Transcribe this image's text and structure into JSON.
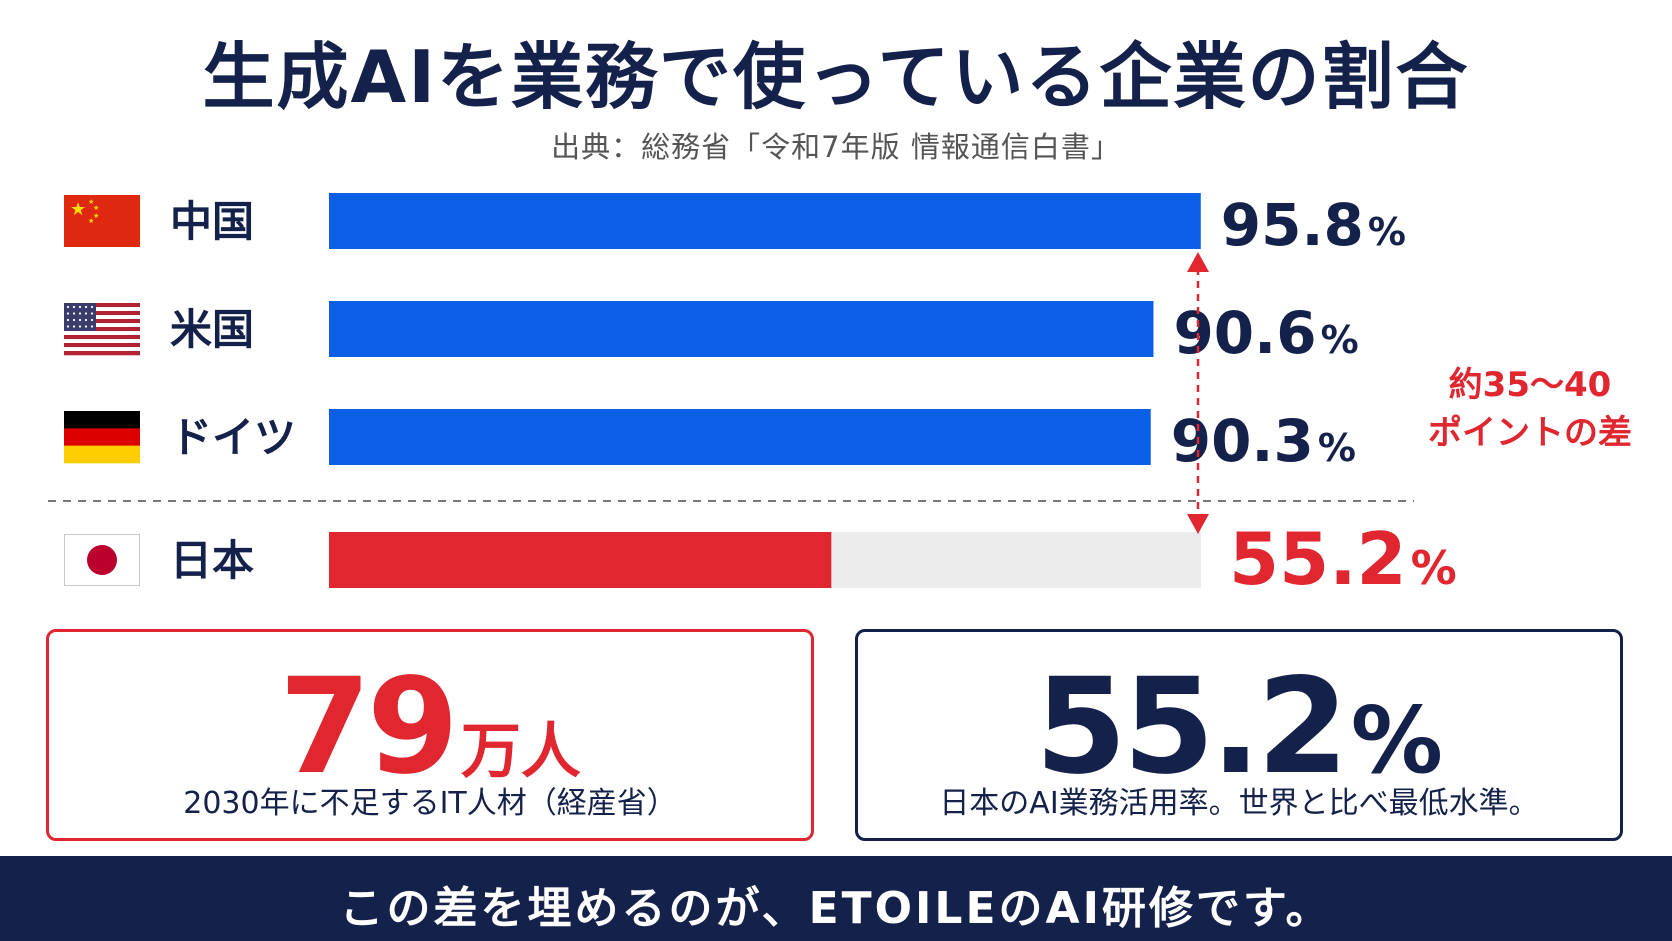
{
  "title": "生成AIを業務で使っている企業の割合",
  "source": "出典：総務省「令和7年版 情報通信白書」",
  "colors": {
    "navy": "#14214a",
    "blue": "#0a5fe6",
    "red": "#e0262e",
    "track": "#ebebeb"
  },
  "chart_data": {
    "type": "bar",
    "orientation": "horizontal",
    "categories": [
      "中国",
      "米国",
      "ドイツ",
      "日本"
    ],
    "values": [
      95.8,
      90.6,
      90.3,
      55.2
    ],
    "value_labels": [
      "95.8",
      "90.6",
      "90.3",
      "55.2"
    ],
    "unit": "%",
    "bar_colors": [
      "#0a5fe6",
      "#0a5fe6",
      "#0a5fe6",
      "#e0262e"
    ],
    "flags": [
      "china-flag-icon",
      "usa-flag-icon",
      "germany-flag-icon",
      "japan-flag-icon"
    ],
    "xlim": [
      0,
      100
    ],
    "separator_before_last": true,
    "annotation": {
      "lines": [
        "約35～40",
        "ポイントの差"
      ],
      "color": "#e0262e"
    }
  },
  "cards": [
    {
      "value": "79",
      "unit": "万人",
      "caption": "2030年に不足するIT人材（経産省）"
    },
    {
      "value": "55.2",
      "unit": "%",
      "caption": "日本のAI業務活用率。世界と比べ最低水準。"
    }
  ],
  "banner": "この差を埋めるのが、ETOILEのAI研修です。"
}
